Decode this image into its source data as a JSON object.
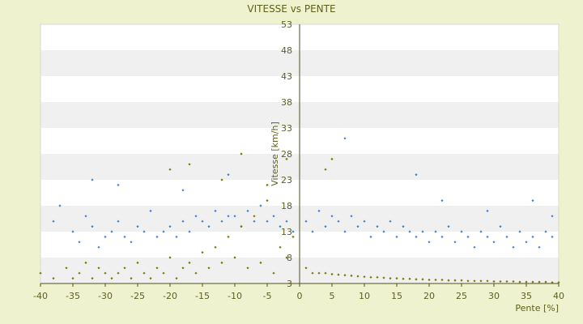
{
  "chart_data": {
    "type": "scatter",
    "title": "VITESSE vs PENTE",
    "xlabel": "Pente [%]",
    "ylabel": "Vitesse [km/h]",
    "xlim": [
      -40,
      40
    ],
    "ylim": [
      3,
      53
    ],
    "xticks": [
      -40,
      -35,
      -30,
      -25,
      -20,
      -15,
      -10,
      -5,
      0,
      5,
      10,
      15,
      20,
      25,
      30,
      35,
      40
    ],
    "yticks": [
      3,
      8,
      13,
      18,
      23,
      28,
      33,
      38,
      43,
      48,
      53
    ],
    "grid": "horizontal alternating bands",
    "legend": "none",
    "series": [
      {
        "color": "#3A87CF",
        "points": [
          [
            -38,
            15
          ],
          [
            -37,
            18
          ],
          [
            -35,
            13
          ],
          [
            -34,
            11
          ],
          [
            -33,
            16
          ],
          [
            -32,
            14
          ],
          [
            -31,
            10
          ],
          [
            -30,
            12
          ],
          [
            -29,
            13
          ],
          [
            -28,
            15
          ],
          [
            -27,
            12
          ],
          [
            -26,
            11
          ],
          [
            -25,
            14
          ],
          [
            -24,
            13
          ],
          [
            -23,
            17
          ],
          [
            -22,
            12
          ],
          [
            -21,
            13
          ],
          [
            -20,
            14
          ],
          [
            -19,
            12
          ],
          [
            -18,
            15
          ],
          [
            -17,
            13
          ],
          [
            -16,
            16
          ],
          [
            -15,
            15
          ],
          [
            -14,
            14
          ],
          [
            -13,
            17
          ],
          [
            -12,
            15
          ],
          [
            -11,
            16
          ],
          [
            -10,
            16
          ],
          [
            -9,
            14
          ],
          [
            -8,
            17
          ],
          [
            -7,
            15
          ],
          [
            -6,
            18
          ],
          [
            -5,
            15
          ],
          [
            -4,
            16
          ],
          [
            -3,
            14
          ],
          [
            -2,
            15
          ],
          [
            -1,
            13
          ],
          [
            -32,
            23
          ],
          [
            -28,
            22
          ],
          [
            -18,
            21
          ],
          [
            -11,
            24
          ],
          [
            7,
            31
          ],
          [
            18,
            24
          ],
          [
            22,
            19
          ],
          [
            29,
            17
          ],
          [
            36,
            19
          ],
          [
            39,
            16
          ],
          [
            1,
            15
          ],
          [
            2,
            13
          ],
          [
            3,
            17
          ],
          [
            4,
            14
          ],
          [
            5,
            16
          ],
          [
            6,
            15
          ],
          [
            7,
            13
          ],
          [
            8,
            16
          ],
          [
            9,
            14
          ],
          [
            10,
            15
          ],
          [
            11,
            12
          ],
          [
            12,
            14
          ],
          [
            13,
            13
          ],
          [
            14,
            15
          ],
          [
            15,
            12
          ],
          [
            16,
            14
          ],
          [
            17,
            13
          ],
          [
            18,
            12
          ],
          [
            19,
            13
          ],
          [
            20,
            11
          ],
          [
            21,
            13
          ],
          [
            22,
            12
          ],
          [
            23,
            14
          ],
          [
            24,
            11
          ],
          [
            25,
            13
          ],
          [
            26,
            12
          ],
          [
            27,
            10
          ],
          [
            28,
            13
          ],
          [
            29,
            12
          ],
          [
            30,
            11
          ],
          [
            31,
            14
          ],
          [
            32,
            12
          ],
          [
            33,
            10
          ],
          [
            34,
            13
          ],
          [
            35,
            11
          ],
          [
            36,
            12
          ],
          [
            37,
            10
          ],
          [
            38,
            13
          ],
          [
            39,
            12
          ]
        ]
      },
      {
        "color": "#7A7A00",
        "points": [
          [
            -40,
            5
          ],
          [
            -38,
            4
          ],
          [
            -36,
            6
          ],
          [
            -35,
            4
          ],
          [
            -34,
            5
          ],
          [
            -33,
            7
          ],
          [
            -32,
            4
          ],
          [
            -31,
            6
          ],
          [
            -30,
            5
          ],
          [
            -29,
            4
          ],
          [
            -28,
            5
          ],
          [
            -27,
            6
          ],
          [
            -26,
            4
          ],
          [
            -25,
            7
          ],
          [
            -24,
            5
          ],
          [
            -23,
            4
          ],
          [
            -22,
            6
          ],
          [
            -21,
            5
          ],
          [
            -20,
            8
          ],
          [
            -19,
            4
          ],
          [
            -18,
            6
          ],
          [
            -17,
            7
          ],
          [
            -16,
            5
          ],
          [
            -15,
            9
          ],
          [
            -14,
            6
          ],
          [
            -13,
            10
          ],
          [
            -12,
            7
          ],
          [
            -11,
            12
          ],
          [
            -10,
            8
          ],
          [
            -9,
            14
          ],
          [
            -8,
            6
          ],
          [
            -7,
            16
          ],
          [
            -6,
            7
          ],
          [
            -5,
            19
          ],
          [
            -4,
            5
          ],
          [
            -3,
            10
          ],
          [
            -2,
            8
          ],
          [
            -1,
            12
          ],
          [
            -20,
            25
          ],
          [
            -17,
            26
          ],
          [
            -12,
            23
          ],
          [
            -9,
            28
          ],
          [
            -5,
            22
          ],
          [
            -2,
            27
          ],
          [
            5,
            27
          ],
          [
            4,
            25
          ],
          [
            1,
            6
          ],
          [
            2,
            5
          ],
          [
            3,
            5
          ],
          [
            4,
            5
          ],
          [
            5,
            4.8
          ],
          [
            6,
            4.7
          ],
          [
            7,
            4.6
          ],
          [
            8,
            4.5
          ],
          [
            9,
            4.4
          ],
          [
            10,
            4.3
          ],
          [
            11,
            4.2
          ],
          [
            12,
            4.2
          ],
          [
            13,
            4.1
          ],
          [
            14,
            4.0
          ],
          [
            15,
            4.0
          ],
          [
            16,
            3.9
          ],
          [
            17,
            3.9
          ],
          [
            18,
            3.8
          ],
          [
            19,
            3.8
          ],
          [
            20,
            3.7
          ],
          [
            21,
            3.7
          ],
          [
            22,
            3.7
          ],
          [
            23,
            3.6
          ],
          [
            24,
            3.6
          ],
          [
            25,
            3.6
          ],
          [
            26,
            3.5
          ],
          [
            27,
            3.5
          ],
          [
            28,
            3.5
          ],
          [
            29,
            3.5
          ],
          [
            30,
            3.4
          ],
          [
            31,
            3.4
          ],
          [
            32,
            3.4
          ],
          [
            33,
            3.4
          ],
          [
            34,
            3.3
          ],
          [
            35,
            3.3
          ],
          [
            36,
            3.3
          ],
          [
            37,
            3.3
          ],
          [
            38,
            3.3
          ],
          [
            39,
            3.2
          ],
          [
            40,
            3.2
          ]
        ]
      }
    ]
  }
}
